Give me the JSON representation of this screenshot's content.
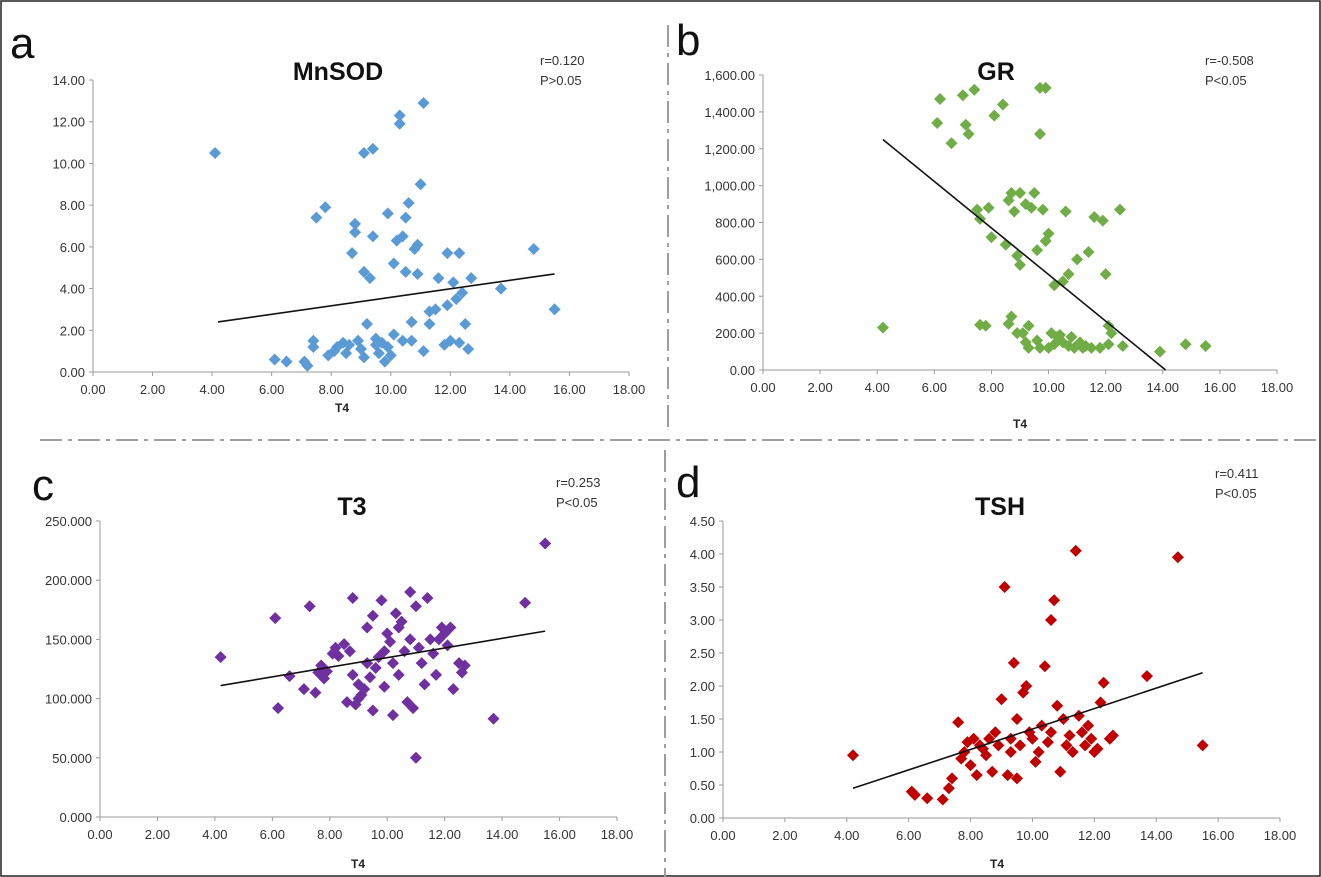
{
  "chart_data": [
    {
      "type": "scatter",
      "panel": "a",
      "title": "MnSOD",
      "stats": [
        "r=0.120",
        "P>0.05"
      ],
      "xlabel": "T4",
      "ylabel": "",
      "xlim": [
        0,
        18
      ],
      "ylim": [
        0,
        14
      ],
      "xticks": [
        "0.00",
        "2.00",
        "4.00",
        "6.00",
        "8.00",
        "10.00",
        "12.00",
        "14.00",
        "16.00",
        "18.00"
      ],
      "yticks": [
        "0.00",
        "2.00",
        "4.00",
        "6.00",
        "8.00",
        "10.00",
        "12.00",
        "14.00"
      ],
      "color": "#5b9bd5",
      "trendline": [
        [
          4.2,
          2.4
        ],
        [
          15.5,
          4.7
        ]
      ],
      "points": [
        [
          4.1,
          10.5
        ],
        [
          6.1,
          0.6
        ],
        [
          6.5,
          0.5
        ],
        [
          7.1,
          0.5
        ],
        [
          7.2,
          0.3
        ],
        [
          7.4,
          1.2
        ],
        [
          7.4,
          1.5
        ],
        [
          7.5,
          7.4
        ],
        [
          7.8,
          7.9
        ],
        [
          7.9,
          0.8
        ],
        [
          8.1,
          1.0
        ],
        [
          8.2,
          1.2
        ],
        [
          8.4,
          1.4
        ],
        [
          8.5,
          0.9
        ],
        [
          8.6,
          1.3
        ],
        [
          8.7,
          5.7
        ],
        [
          8.8,
          6.7
        ],
        [
          8.8,
          7.1
        ],
        [
          8.9,
          1.5
        ],
        [
          9.0,
          1.1
        ],
        [
          9.1,
          0.7
        ],
        [
          9.1,
          4.8
        ],
        [
          9.1,
          10.5
        ],
        [
          9.2,
          2.3
        ],
        [
          9.3,
          4.5
        ],
        [
          9.4,
          6.5
        ],
        [
          9.4,
          10.7
        ],
        [
          9.5,
          1.3
        ],
        [
          9.5,
          1.6
        ],
        [
          9.6,
          0.9
        ],
        [
          9.7,
          1.4
        ],
        [
          9.8,
          0.5
        ],
        [
          9.9,
          1.2
        ],
        [
          9.9,
          7.6
        ],
        [
          10.0,
          0.8
        ],
        [
          10.1,
          1.8
        ],
        [
          10.1,
          5.2
        ],
        [
          10.2,
          6.3
        ],
        [
          10.3,
          11.9
        ],
        [
          10.3,
          12.3
        ],
        [
          10.4,
          1.5
        ],
        [
          10.4,
          6.5
        ],
        [
          10.5,
          4.8
        ],
        [
          10.5,
          7.4
        ],
        [
          10.6,
          8.1
        ],
        [
          10.7,
          1.5
        ],
        [
          10.7,
          2.4
        ],
        [
          10.8,
          5.9
        ],
        [
          10.9,
          6.1
        ],
        [
          10.9,
          4.7
        ],
        [
          11.0,
          9.0
        ],
        [
          11.1,
          1.0
        ],
        [
          11.1,
          12.9
        ],
        [
          11.3,
          2.3
        ],
        [
          11.3,
          2.9
        ],
        [
          11.5,
          3.0
        ],
        [
          11.6,
          4.5
        ],
        [
          11.8,
          1.3
        ],
        [
          11.9,
          3.2
        ],
        [
          11.9,
          5.7
        ],
        [
          12.0,
          1.5
        ],
        [
          12.1,
          4.3
        ],
        [
          12.2,
          3.5
        ],
        [
          12.3,
          1.4
        ],
        [
          12.3,
          5.7
        ],
        [
          12.4,
          3.8
        ],
        [
          12.5,
          2.3
        ],
        [
          12.6,
          1.1
        ],
        [
          12.7,
          4.5
        ],
        [
          13.7,
          4.0
        ],
        [
          14.8,
          5.9
        ],
        [
          15.5,
          3.0
        ]
      ]
    },
    {
      "type": "scatter",
      "panel": "b",
      "title": "GR",
      "stats": [
        "r=-0.508",
        "P<0.05"
      ],
      "xlabel": "T4",
      "ylabel": "",
      "xlim": [
        0,
        18
      ],
      "ylim": [
        0,
        1600
      ],
      "xticks": [
        "0.00",
        "2.00",
        "4.00",
        "6.00",
        "8.00",
        "10.00",
        "12.00",
        "14.00",
        "16.00",
        "18.00"
      ],
      "yticks": [
        "0.00",
        "200.00",
        "400.00",
        "600.00",
        "800.00",
        "1,000.00",
        "1,200.00",
        "1,400.00",
        "1,600.00"
      ],
      "color": "#70ad47",
      "trendline": [
        [
          4.2,
          1250
        ],
        [
          14.1,
          0
        ]
      ],
      "points": [
        [
          4.2,
          230
        ],
        [
          6.1,
          1340
        ],
        [
          6.2,
          1470
        ],
        [
          6.6,
          1230
        ],
        [
          7.0,
          1490
        ],
        [
          7.1,
          1330
        ],
        [
          7.2,
          1280
        ],
        [
          7.4,
          1520
        ],
        [
          7.5,
          870
        ],
        [
          7.6,
          820
        ],
        [
          7.6,
          245
        ],
        [
          7.8,
          240
        ],
        [
          7.9,
          880
        ],
        [
          8.0,
          720
        ],
        [
          8.1,
          1380
        ],
        [
          8.4,
          1440
        ],
        [
          8.5,
          680
        ],
        [
          8.6,
          250
        ],
        [
          8.6,
          920
        ],
        [
          8.7,
          960
        ],
        [
          8.7,
          290
        ],
        [
          8.8,
          860
        ],
        [
          8.9,
          620
        ],
        [
          8.9,
          200
        ],
        [
          9.0,
          570
        ],
        [
          9.0,
          960
        ],
        [
          9.1,
          200
        ],
        [
          9.2,
          150
        ],
        [
          9.2,
          900
        ],
        [
          9.3,
          240
        ],
        [
          9.3,
          120
        ],
        [
          9.4,
          880
        ],
        [
          9.5,
          960
        ],
        [
          9.6,
          650
        ],
        [
          9.6,
          160
        ],
        [
          9.7,
          1530
        ],
        [
          9.7,
          1280
        ],
        [
          9.7,
          120
        ],
        [
          9.8,
          870
        ],
        [
          9.9,
          1530
        ],
        [
          9.9,
          700
        ],
        [
          10.0,
          740
        ],
        [
          10.0,
          120
        ],
        [
          10.1,
          200
        ],
        [
          10.2,
          460
        ],
        [
          10.2,
          140
        ],
        [
          10.3,
          180
        ],
        [
          10.4,
          190
        ],
        [
          10.5,
          480
        ],
        [
          10.5,
          150
        ],
        [
          10.6,
          860
        ],
        [
          10.7,
          520
        ],
        [
          10.7,
          130
        ],
        [
          10.8,
          180
        ],
        [
          10.9,
          120
        ],
        [
          11.0,
          600
        ],
        [
          11.1,
          150
        ],
        [
          11.2,
          120
        ],
        [
          11.3,
          130
        ],
        [
          11.4,
          640
        ],
        [
          11.5,
          120
        ],
        [
          11.6,
          830
        ],
        [
          11.8,
          120
        ],
        [
          11.9,
          810
        ],
        [
          12.0,
          520
        ],
        [
          12.1,
          140
        ],
        [
          12.1,
          240
        ],
        [
          12.2,
          200
        ],
        [
          12.5,
          870
        ],
        [
          12.6,
          130
        ],
        [
          13.9,
          100
        ],
        [
          14.8,
          140
        ],
        [
          15.5,
          130
        ]
      ]
    },
    {
      "type": "scatter",
      "panel": "c",
      "title": "T3",
      "stats": [
        "r=0.253",
        "P<0.05"
      ],
      "xlabel": "T4",
      "ylabel": "",
      "xlim": [
        0,
        18
      ],
      "ylim": [
        0,
        250
      ],
      "xticks": [
        "0.00",
        "2.00",
        "4.00",
        "6.00",
        "8.00",
        "10.00",
        "12.00",
        "14.00",
        "16.00",
        "18.00"
      ],
      "yticks": [
        "0.000",
        "50.000",
        "100.000",
        "150.000",
        "200.000",
        "250.000"
      ],
      "color": "#7030a0",
      "trendline": [
        [
          4.2,
          111
        ],
        [
          15.5,
          157
        ]
      ],
      "points": [
        [
          4.2,
          135
        ],
        [
          6.1,
          168
        ],
        [
          6.2,
          92
        ],
        [
          6.6,
          119
        ],
        [
          7.1,
          108
        ],
        [
          7.3,
          178
        ],
        [
          7.5,
          105
        ],
        [
          7.6,
          122
        ],
        [
          7.7,
          128
        ],
        [
          7.8,
          117
        ],
        [
          7.9,
          123
        ],
        [
          8.1,
          138
        ],
        [
          8.2,
          143
        ],
        [
          8.3,
          136
        ],
        [
          8.5,
          146
        ],
        [
          8.6,
          97
        ],
        [
          8.7,
          140
        ],
        [
          8.8,
          185
        ],
        [
          8.8,
          120
        ],
        [
          8.9,
          95
        ],
        [
          9.0,
          112
        ],
        [
          9.0,
          100
        ],
        [
          9.1,
          103
        ],
        [
          9.2,
          108
        ],
        [
          9.3,
          160
        ],
        [
          9.3,
          130
        ],
        [
          9.4,
          118
        ],
        [
          9.5,
          90
        ],
        [
          9.5,
          170
        ],
        [
          9.6,
          126
        ],
        [
          9.7,
          135
        ],
        [
          9.8,
          183
        ],
        [
          9.9,
          110
        ],
        [
          9.9,
          140
        ],
        [
          10.0,
          155
        ],
        [
          10.1,
          148
        ],
        [
          10.2,
          86
        ],
        [
          10.2,
          130
        ],
        [
          10.3,
          172
        ],
        [
          10.4,
          160
        ],
        [
          10.4,
          120
        ],
        [
          10.5,
          165
        ],
        [
          10.6,
          140
        ],
        [
          10.7,
          97
        ],
        [
          10.8,
          190
        ],
        [
          10.8,
          150
        ],
        [
          10.9,
          92
        ],
        [
          11.0,
          50
        ],
        [
          11.0,
          178
        ],
        [
          11.1,
          143
        ],
        [
          11.2,
          130
        ],
        [
          11.3,
          112
        ],
        [
          11.4,
          185
        ],
        [
          11.5,
          150
        ],
        [
          11.6,
          138
        ],
        [
          11.7,
          120
        ],
        [
          11.8,
          150
        ],
        [
          11.9,
          160
        ],
        [
          12.0,
          155
        ],
        [
          12.1,
          145
        ],
        [
          12.2,
          160
        ],
        [
          12.3,
          108
        ],
        [
          12.5,
          130
        ],
        [
          12.6,
          122
        ],
        [
          12.7,
          128
        ],
        [
          13.7,
          83
        ],
        [
          14.8,
          181
        ],
        [
          15.5,
          231
        ]
      ]
    },
    {
      "type": "scatter",
      "panel": "d",
      "title": "TSH",
      "stats": [
        "r=0.411",
        "P<0.05"
      ],
      "xlabel": "T4",
      "ylabel": "",
      "xlim": [
        0,
        18
      ],
      "ylim": [
        0,
        4.5
      ],
      "xticks": [
        "0.00",
        "2.00",
        "4.00",
        "6.00",
        "8.00",
        "10.00",
        "12.00",
        "14.00",
        "16.00",
        "18.00"
      ],
      "yticks": [
        "0.00",
        "0.50",
        "1.00",
        "1.50",
        "2.00",
        "2.50",
        "3.00",
        "3.50",
        "4.00",
        "4.50"
      ],
      "color": "#c00000",
      "trendline": [
        [
          4.2,
          0.45
        ],
        [
          15.5,
          2.2
        ]
      ],
      "points": [
        [
          4.2,
          0.95
        ],
        [
          6.1,
          0.4
        ],
        [
          6.2,
          0.35
        ],
        [
          6.6,
          0.3
        ],
        [
          7.1,
          0.28
        ],
        [
          7.3,
          0.45
        ],
        [
          7.4,
          0.6
        ],
        [
          7.6,
          1.45
        ],
        [
          7.7,
          0.9
        ],
        [
          7.8,
          1.0
        ],
        [
          7.9,
          1.15
        ],
        [
          8.0,
          0.8
        ],
        [
          8.1,
          1.2
        ],
        [
          8.2,
          0.65
        ],
        [
          8.3,
          1.1
        ],
        [
          8.4,
          1.05
        ],
        [
          8.5,
          0.95
        ],
        [
          8.6,
          1.2
        ],
        [
          8.7,
          0.7
        ],
        [
          8.8,
          1.3
        ],
        [
          8.9,
          1.1
        ],
        [
          9.0,
          1.8
        ],
        [
          9.1,
          3.5
        ],
        [
          9.2,
          0.65
        ],
        [
          9.3,
          1.0
        ],
        [
          9.3,
          1.2
        ],
        [
          9.4,
          2.35
        ],
        [
          9.5,
          0.6
        ],
        [
          9.5,
          1.5
        ],
        [
          9.6,
          1.1
        ],
        [
          9.7,
          1.9
        ],
        [
          9.8,
          2.0
        ],
        [
          9.9,
          1.3
        ],
        [
          10.0,
          1.2
        ],
        [
          10.1,
          0.85
        ],
        [
          10.2,
          1.0
        ],
        [
          10.3,
          1.4
        ],
        [
          10.4,
          2.3
        ],
        [
          10.5,
          1.15
        ],
        [
          10.6,
          1.3
        ],
        [
          10.6,
          3.0
        ],
        [
          10.7,
          3.3
        ],
        [
          10.8,
          1.7
        ],
        [
          10.9,
          0.7
        ],
        [
          11.0,
          1.5
        ],
        [
          11.1,
          1.1
        ],
        [
          11.2,
          1.25
        ],
        [
          11.3,
          1.0
        ],
        [
          11.4,
          4.05
        ],
        [
          11.5,
          1.55
        ],
        [
          11.6,
          1.3
        ],
        [
          11.7,
          1.1
        ],
        [
          11.8,
          1.4
        ],
        [
          11.9,
          1.2
        ],
        [
          12.0,
          1.0
        ],
        [
          12.1,
          1.05
        ],
        [
          12.2,
          1.75
        ],
        [
          12.3,
          2.05
        ],
        [
          12.5,
          1.2
        ],
        [
          12.6,
          1.25
        ],
        [
          13.7,
          2.15
        ],
        [
          14.7,
          3.95
        ],
        [
          15.5,
          1.1
        ]
      ]
    }
  ]
}
